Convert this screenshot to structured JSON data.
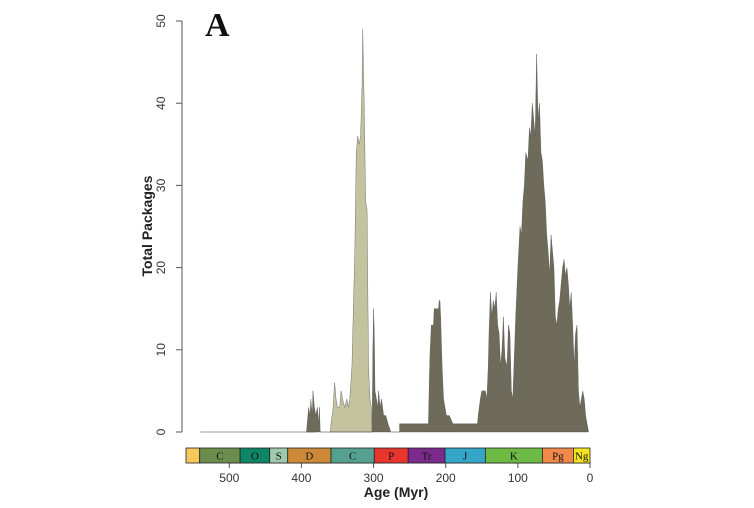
{
  "chart_data": {
    "type": "area",
    "panel_label": "A",
    "xlabel": "Age (Myr)",
    "ylabel": "Total Packages",
    "xlim": [
      560,
      0
    ],
    "ylim": [
      0,
      50
    ],
    "x_ticks": [
      500,
      400,
      300,
      200,
      100,
      0
    ],
    "y_ticks": [
      0,
      10,
      20,
      30,
      40,
      50
    ],
    "grid": false,
    "legend": "none",
    "series": [
      {
        "color": "#c4c3a0",
        "points": [
          [
            360,
            0
          ],
          [
            359,
            1
          ],
          [
            356,
            3
          ],
          [
            354,
            6
          ],
          [
            352,
            4
          ],
          [
            350,
            3
          ],
          [
            347,
            3
          ],
          [
            345,
            5
          ],
          [
            343,
            4
          ],
          [
            340,
            3
          ],
          [
            337,
            4
          ],
          [
            335,
            3
          ],
          [
            333,
            4
          ],
          [
            330,
            8
          ],
          [
            328,
            15
          ],
          [
            326,
            22
          ],
          [
            324,
            34
          ],
          [
            322,
            36
          ],
          [
            320,
            35
          ],
          [
            318,
            36
          ],
          [
            316,
            42
          ],
          [
            315,
            49
          ],
          [
            314,
            44
          ],
          [
            313,
            40
          ],
          [
            311,
            28
          ],
          [
            309,
            27
          ],
          [
            307,
            8
          ],
          [
            305,
            4
          ],
          [
            303,
            3
          ],
          [
            302,
            0
          ]
        ]
      },
      {
        "color": "#6e6b5a",
        "points": [
          [
            393,
            0
          ],
          [
            392,
            1
          ],
          [
            390,
            3
          ],
          [
            388,
            2
          ],
          [
            387,
            4
          ],
          [
            385,
            2
          ],
          [
            384,
            5
          ],
          [
            382,
            3
          ],
          [
            380,
            2
          ],
          [
            378,
            3
          ],
          [
            376,
            1
          ],
          [
            375,
            3
          ],
          [
            374,
            0
          ],
          [
            302,
            0
          ],
          [
            301,
            10
          ],
          [
            300,
            15
          ],
          [
            299,
            12
          ],
          [
            298,
            5
          ],
          [
            296,
            4
          ],
          [
            294,
            3
          ],
          [
            293,
            5
          ],
          [
            291,
            3
          ],
          [
            289,
            4
          ],
          [
            286,
            2
          ],
          [
            283,
            2
          ],
          [
            280,
            1
          ],
          [
            276,
            0
          ],
          [
            264,
            0
          ],
          [
            264,
            1
          ],
          [
            230,
            1
          ],
          [
            224,
            1
          ],
          [
            222,
            9
          ],
          [
            220,
            13
          ],
          [
            217,
            13
          ],
          [
            216,
            15
          ],
          [
            212,
            15
          ],
          [
            210,
            15
          ],
          [
            209,
            16
          ],
          [
            208,
            16
          ],
          [
            207,
            14
          ],
          [
            205,
            8
          ],
          [
            203,
            4
          ],
          [
            201,
            3
          ],
          [
            199,
            2
          ],
          [
            195,
            2
          ],
          [
            190,
            1
          ],
          [
            156,
            1
          ],
          [
            155,
            2
          ],
          [
            152,
            4
          ],
          [
            150,
            5
          ],
          [
            145,
            5
          ],
          [
            143,
            4
          ],
          [
            141,
            8
          ],
          [
            140,
            12
          ],
          [
            138,
            17
          ],
          [
            136,
            14
          ],
          [
            134,
            16
          ],
          [
            132,
            15
          ],
          [
            130,
            17
          ],
          [
            128,
            13
          ],
          [
            126,
            12
          ],
          [
            124,
            8
          ],
          [
            122,
            10
          ],
          [
            120,
            14
          ],
          [
            118,
            9
          ],
          [
            115,
            8
          ],
          [
            113,
            13
          ],
          [
            111,
            12
          ],
          [
            109,
            5
          ],
          [
            107,
            4
          ],
          [
            105,
            9
          ],
          [
            103,
            14
          ],
          [
            100,
            20
          ],
          [
            97,
            25
          ],
          [
            95,
            24
          ],
          [
            93,
            28
          ],
          [
            91,
            30
          ],
          [
            89,
            34
          ],
          [
            86,
            33
          ],
          [
            84,
            37
          ],
          [
            82,
            36
          ],
          [
            80,
            40
          ],
          [
            78,
            38
          ],
          [
            76,
            36
          ],
          [
            74,
            46
          ],
          [
            72,
            38
          ],
          [
            70,
            40
          ],
          [
            68,
            34
          ],
          [
            66,
            33
          ],
          [
            64,
            30
          ],
          [
            62,
            28
          ],
          [
            60,
            24
          ],
          [
            58,
            22
          ],
          [
            56,
            19
          ],
          [
            54,
            24
          ],
          [
            52,
            22
          ],
          [
            50,
            20
          ],
          [
            48,
            14
          ],
          [
            46,
            13
          ],
          [
            44,
            15
          ],
          [
            42,
            16
          ],
          [
            40,
            18
          ],
          [
            38,
            20
          ],
          [
            36,
            21
          ],
          [
            34,
            19
          ],
          [
            32,
            20
          ],
          [
            30,
            18
          ],
          [
            28,
            15
          ],
          [
            26,
            17
          ],
          [
            24,
            13
          ],
          [
            22,
            8
          ],
          [
            20,
            12
          ],
          [
            18,
            13
          ],
          [
            16,
            5
          ],
          [
            14,
            3
          ],
          [
            12,
            4
          ],
          [
            10,
            5
          ],
          [
            8,
            4
          ],
          [
            6,
            2
          ],
          [
            4,
            1
          ],
          [
            2,
            0
          ]
        ]
      }
    ],
    "baseline_range": [
      540,
      380
    ],
    "timescale": [
      {
        "label": "",
        "from": 560,
        "to": 541,
        "color": "#f6c75a"
      },
      {
        "label": "C",
        "from": 541,
        "to": 485,
        "color": "#6b8e4e"
      },
      {
        "label": "O",
        "from": 485,
        "to": 444,
        "color": "#0f8567"
      },
      {
        "label": "S",
        "from": 444,
        "to": 419,
        "color": "#9fc9ae"
      },
      {
        "label": "D",
        "from": 419,
        "to": 359,
        "color": "#cc8a38"
      },
      {
        "label": "C",
        "from": 359,
        "to": 299,
        "color": "#55a090"
      },
      {
        "label": "P",
        "from": 299,
        "to": 252,
        "color": "#e8352e"
      },
      {
        "label": "Tr",
        "from": 252,
        "to": 201,
        "color": "#7c2a8c"
      },
      {
        "label": "J",
        "from": 201,
        "to": 145,
        "color": "#35a5c8"
      },
      {
        "label": "K",
        "from": 145,
        "to": 66,
        "color": "#6dbb45"
      },
      {
        "label": "Pg",
        "from": 66,
        "to": 23,
        "color": "#f0894a"
      },
      {
        "label": "Ng",
        "from": 23,
        "to": 0,
        "color": "#f4e424"
      }
    ]
  }
}
